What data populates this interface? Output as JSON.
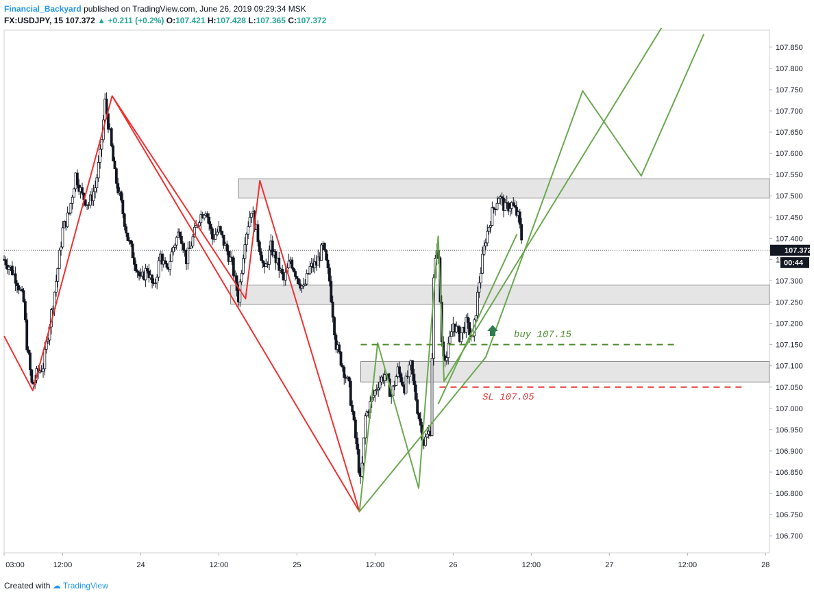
{
  "header": {
    "author": "Financial_Backyard",
    "published": "published on TradingView.com, June 26, 2019 09:29:34 MSK",
    "symbol": "FX:USDJPY, 15",
    "last": "107.372",
    "change": "+0.211 (+0.2%)",
    "o_label": "O:",
    "o_value": "107.421",
    "h_label": "H:",
    "h_value": "107.428",
    "l_label": "L:",
    "l_value": "107.365",
    "c_label": "C:",
    "c_value": "107.372"
  },
  "footer": {
    "created_with": "Created with",
    "brand": "TradingView"
  },
  "chart_data": {
    "type": "candlestick",
    "symbol": "USDJPY",
    "interval": "15",
    "ylim": [
      106.66,
      107.89
    ],
    "y_ticks": [
      "107.850",
      "107.800",
      "107.750",
      "107.700",
      "107.650",
      "107.600",
      "107.550",
      "107.500",
      "107.450",
      "107.400",
      "107.350",
      "107.300",
      "107.250",
      "107.200",
      "107.150",
      "107.100",
      "107.050",
      "107.000",
      "106.950",
      "106.900",
      "106.850",
      "106.800",
      "106.750",
      "106.700"
    ],
    "x_ticks": [
      {
        "label": "03:00",
        "t": 0.0
      },
      {
        "label": "12:00",
        "t": 9
      },
      {
        "label": "24",
        "t": 21
      },
      {
        "label": "12:00",
        "t": 33
      },
      {
        "label": "25",
        "t": 45
      },
      {
        "label": "12:00",
        "t": 57
      },
      {
        "label": "26",
        "t": 69
      },
      {
        "label": "12:00",
        "t": 81
      },
      {
        "label": "27",
        "t": 93
      },
      {
        "label": "12:00",
        "t": 105
      },
      {
        "label": "28",
        "t": 117
      }
    ],
    "t_range": [
      0,
      117.6
    ],
    "price_path": [
      [
        0,
        107.35
      ],
      [
        1,
        107.33
      ],
      [
        2,
        107.3
      ],
      [
        3,
        107.25
      ],
      [
        3.5,
        107.15
      ],
      [
        4.3,
        107.05
      ],
      [
        5,
        107.08
      ],
      [
        6,
        107.1
      ],
      [
        7,
        107.2
      ],
      [
        8,
        107.3
      ],
      [
        9,
        107.42
      ],
      [
        10,
        107.46
      ],
      [
        11,
        107.55
      ],
      [
        12,
        107.5
      ],
      [
        13,
        107.48
      ],
      [
        14,
        107.52
      ],
      [
        14.8,
        107.6
      ],
      [
        15.5,
        107.72
      ],
      [
        16.2,
        107.65
      ],
      [
        17,
        107.55
      ],
      [
        18,
        107.48
      ],
      [
        19,
        107.4
      ],
      [
        20,
        107.35
      ],
      [
        21,
        107.3
      ],
      [
        22,
        107.33
      ],
      [
        23,
        107.28
      ],
      [
        24,
        107.36
      ],
      [
        25,
        107.32
      ],
      [
        26,
        107.38
      ],
      [
        27,
        107.42
      ],
      [
        28,
        107.35
      ],
      [
        29,
        107.4
      ],
      [
        30,
        107.45
      ],
      [
        31,
        107.47
      ],
      [
        32,
        107.4
      ],
      [
        33,
        107.42
      ],
      [
        34,
        107.38
      ],
      [
        35,
        107.34
      ],
      [
        36,
        107.26
      ],
      [
        37,
        107.4
      ],
      [
        38,
        107.47
      ],
      [
        39,
        107.4
      ],
      [
        40,
        107.32
      ],
      [
        41,
        107.38
      ],
      [
        42,
        107.34
      ],
      [
        43,
        107.3
      ],
      [
        44,
        107.35
      ],
      [
        45,
        107.31
      ],
      [
        46,
        107.28
      ],
      [
        47,
        107.33
      ],
      [
        48,
        107.34
      ],
      [
        49,
        107.38
      ],
      [
        50,
        107.3
      ],
      [
        51,
        107.15
      ],
      [
        52,
        107.1
      ],
      [
        53,
        107.05
      ],
      [
        54,
        106.93
      ],
      [
        54.8,
        106.82
      ],
      [
        55.5,
        106.98
      ],
      [
        56.5,
        107.02
      ],
      [
        57.5,
        107.06
      ],
      [
        58.5,
        107.08
      ],
      [
        59.5,
        107.03
      ],
      [
        60.5,
        107.09
      ],
      [
        61.5,
        107.05
      ],
      [
        62.5,
        107.1
      ],
      [
        63.5,
        107.0
      ],
      [
        64.5,
        106.92
      ],
      [
        65.5,
        106.95
      ],
      [
        66,
        107.3
      ],
      [
        66.6,
        107.4
      ],
      [
        67.3,
        107.14
      ],
      [
        68,
        107.12
      ],
      [
        69,
        107.2
      ],
      [
        70,
        107.17
      ],
      [
        71,
        107.2
      ],
      [
        72,
        107.16
      ],
      [
        73,
        107.3
      ],
      [
        74,
        107.4
      ],
      [
        75,
        107.46
      ],
      [
        76,
        107.5
      ],
      [
        77,
        107.47
      ],
      [
        78,
        107.48
      ],
      [
        79,
        107.45
      ],
      [
        79.7,
        107.38
      ]
    ],
    "support_resistance_zones": [
      {
        "y": [
          107.495,
          107.54
        ],
        "t": [
          36.0,
          117.6
        ]
      },
      {
        "y": [
          107.245,
          107.29
        ],
        "t": [
          34.8,
          117.6
        ]
      },
      {
        "y": [
          107.062,
          107.11
        ],
        "t": [
          54.8,
          117.6
        ]
      }
    ],
    "red_pattern": [
      [
        0,
        107.17
      ],
      [
        4.4,
        107.042
      ],
      [
        16.6,
        107.735
      ],
      [
        37.1,
        107.258
      ],
      [
        39.3,
        107.536
      ],
      [
        54.6,
        106.757
      ],
      [
        16.6,
        107.735
      ]
    ],
    "green_pattern_1": [
      [
        54.6,
        106.757
      ],
      [
        57.4,
        107.154
      ],
      [
        63.7,
        106.812
      ],
      [
        66.7,
        107.405
      ],
      [
        67.6,
        107.063
      ],
      [
        101.0,
        107.895
      ]
    ],
    "green_pattern_2": [
      [
        54.6,
        106.757
      ],
      [
        74.0,
        107.12
      ],
      [
        88.9,
        107.747
      ],
      [
        97.9,
        107.547
      ],
      [
        107.5,
        107.88
      ]
    ],
    "green_trend_line": [
      [
        66.7,
        107.01
      ],
      [
        78.8,
        107.41
      ]
    ],
    "levels": [
      {
        "name": "buy",
        "price": 107.15,
        "label": "buy 107.15",
        "color": "#4c8c2b",
        "t": [
          54.8,
          103.0
        ]
      },
      {
        "name": "sl",
        "price": 107.05,
        "label": "SL 107.05",
        "color": "#e53935",
        "t": [
          66.9,
          114.0
        ]
      }
    ],
    "last_price": {
      "value": 107.372,
      "label": "107.372"
    },
    "countdown": "00:44",
    "colors": {
      "red": "#f03030",
      "green": "#6aa84f",
      "candle": "#131722",
      "zone_fill": "#e0e0e0",
      "zone_stroke": "#888888"
    }
  }
}
